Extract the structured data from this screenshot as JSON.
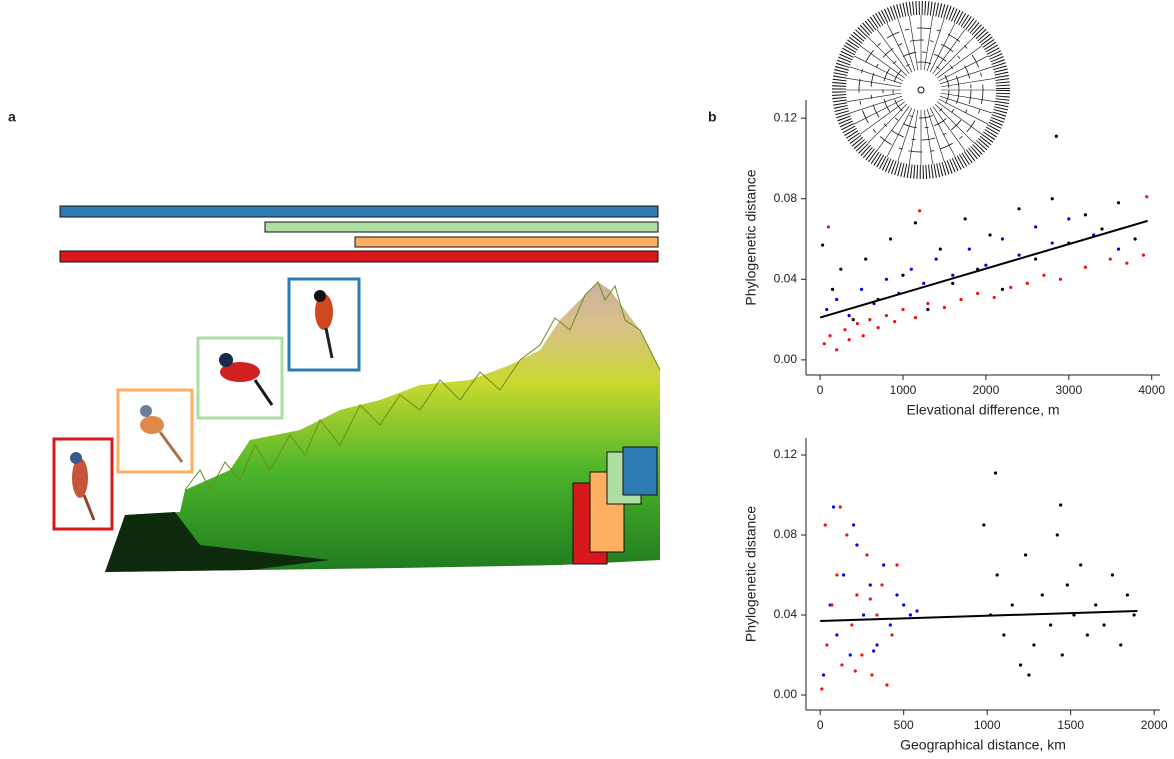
{
  "panel_labels": [
    "a",
    "b"
  ],
  "chart_data": [
    {
      "type": "scatter",
      "xlabel": "Elevational difference, m",
      "ylabel": "Phylogenetic distance",
      "xlim": [
        -170,
        4100
      ],
      "ylim": [
        -0.0075,
        0.129
      ],
      "xticks": [
        0,
        1000,
        2000,
        3000,
        4000
      ],
      "yticks": [
        {
          "value": 0,
          "label": "0.00"
        },
        0.04,
        0.08,
        0.12
      ],
      "series": [
        {
          "color": "#000000",
          "x": [
            30,
            150,
            250,
            400,
            550,
            700,
            850,
            1000,
            1150,
            1300,
            1450,
            1600,
            1750,
            1900,
            2050,
            2200,
            2400,
            2600,
            2800,
            2850,
            3000,
            3200,
            3400,
            3600,
            3800
          ],
          "values": [
            0.057,
            0.035,
            0.045,
            0.02,
            0.05,
            0.03,
            0.06,
            0.042,
            0.068,
            0.025,
            0.055,
            0.038,
            0.07,
            0.045,
            0.062,
            0.035,
            0.075,
            0.05,
            0.08,
            0.111,
            0.058,
            0.072,
            0.065,
            0.078,
            0.06
          ]
        },
        {
          "color": "#0000ee",
          "x": [
            80,
            200,
            350,
            500,
            650,
            800,
            950,
            1100,
            1250,
            1400,
            1600,
            1800,
            2000,
            2200,
            2400,
            2600,
            2800,
            3000,
            3300,
            3600
          ],
          "values": [
            0.025,
            0.03,
            0.022,
            0.035,
            0.028,
            0.04,
            0.033,
            0.045,
            0.038,
            0.05,
            0.042,
            0.055,
            0.047,
            0.06,
            0.052,
            0.066,
            0.058,
            0.07,
            0.062,
            0.055
          ]
        },
        {
          "color": "#ee1111",
          "x": [
            50,
            120,
            200,
            300,
            350,
            450,
            520,
            600,
            700,
            800,
            900,
            1000,
            1150,
            1300,
            1500,
            1700,
            1900,
            2100,
            2300,
            2500,
            2700,
            2900,
            3200,
            3500,
            3700,
            3900,
            100,
            1200,
            3940
          ],
          "values": [
            0.008,
            0.012,
            0.005,
            0.015,
            0.01,
            0.018,
            0.012,
            0.02,
            0.016,
            0.022,
            0.019,
            0.025,
            0.021,
            0.028,
            0.026,
            0.03,
            0.033,
            0.031,
            0.036,
            0.038,
            0.042,
            0.04,
            0.046,
            0.05,
            0.048,
            0.052,
            0.066,
            0.074,
            0.081
          ]
        },
        {
          "type": "line",
          "color": "#000000",
          "x": [
            0,
            3950
          ],
          "values": [
            0.021,
            0.069
          ]
        }
      ]
    },
    {
      "type": "scatter",
      "xlabel": "Geographical distance, km",
      "ylabel": "Phylogenetic distance",
      "xlim": [
        -85,
        2035
      ],
      "ylim": [
        -0.0075,
        0.1285
      ],
      "xticks": [
        0,
        500,
        1000,
        1500,
        2000
      ],
      "yticks": [
        {
          "value": 0,
          "label": "0.00"
        },
        0.04,
        0.08,
        0.12
      ],
      "series": [
        {
          "color": "#000000",
          "x": [
            980,
            1020,
            1060,
            1100,
            1150,
            1200,
            1230,
            1280,
            1330,
            1380,
            1420,
            1450,
            1480,
            1520,
            1560,
            1600,
            1650,
            1700,
            1750,
            1800,
            1840,
            1880,
            1050,
            1440,
            1250
          ],
          "values": [
            0.085,
            0.04,
            0.06,
            0.03,
            0.045,
            0.015,
            0.07,
            0.025,
            0.05,
            0.035,
            0.08,
            0.02,
            0.055,
            0.04,
            0.065,
            0.03,
            0.045,
            0.035,
            0.06,
            0.025,
            0.05,
            0.04,
            0.111,
            0.095,
            0.01
          ]
        },
        {
          "color": "#0000ee",
          "x": [
            20,
            60,
            100,
            140,
            180,
            220,
            260,
            300,
            340,
            380,
            420,
            460,
            500,
            540,
            580,
            80,
            200,
            320
          ],
          "values": [
            0.01,
            0.045,
            0.03,
            0.06,
            0.02,
            0.075,
            0.04,
            0.055,
            0.025,
            0.065,
            0.035,
            0.05,
            0.045,
            0.04,
            0.042,
            0.094,
            0.085,
            0.022
          ]
        },
        {
          "color": "#ee1111",
          "x": [
            10,
            40,
            70,
            100,
            130,
            160,
            190,
            220,
            250,
            280,
            310,
            340,
            370,
            400,
            430,
            460,
            30,
            120,
            210,
            300
          ],
          "values": [
            0.003,
            0.025,
            0.045,
            0.06,
            0.015,
            0.08,
            0.035,
            0.05,
            0.02,
            0.07,
            0.01,
            0.04,
            0.055,
            0.005,
            0.03,
            0.065,
            0.085,
            0.094,
            0.012,
            0.048
          ]
        },
        {
          "type": "line",
          "color": "#000000",
          "x": [
            0,
            1900
          ],
          "values": [
            0.037,
            0.042
          ]
        }
      ]
    }
  ]
}
